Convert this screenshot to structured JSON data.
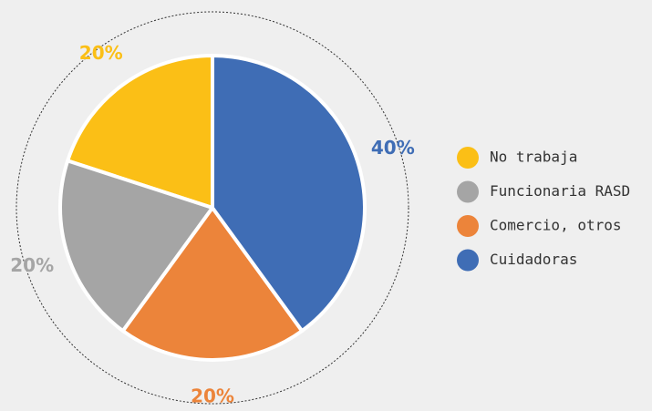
{
  "chart_data": {
    "type": "pie",
    "categories": [
      "No trabaja",
      "Funcionaria RASD",
      "Comercio, otros",
      "Cuidadoras"
    ],
    "values": [
      20,
      20,
      20,
      40
    ],
    "value_labels": [
      "20%",
      "20%",
      "20%",
      "40%"
    ],
    "colors": [
      "#fbbf16",
      "#a5a5a5",
      "#ec843a",
      "#3f6db5"
    ]
  }
}
